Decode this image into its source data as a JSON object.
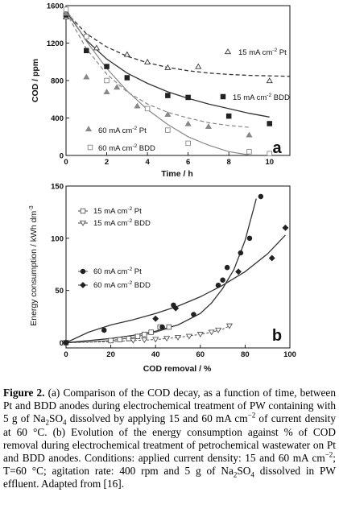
{
  "colors": {
    "pt": "#333333",
    "bdd": "#222222",
    "pt60": "#888888",
    "bdd60": "#999999"
  },
  "chart_data": [
    {
      "type": "scatter",
      "panel_label": "a",
      "xlabel": "Time / h",
      "ylabel": "COD / ppm",
      "xlim": [
        0,
        11
      ],
      "ylim": [
        0,
        1600
      ],
      "xticks": [
        "0",
        "2",
        "4",
        "6",
        "8",
        "10"
      ],
      "yticks": [
        "0",
        "400",
        "800",
        "1200",
        "1600"
      ],
      "series": [
        {
          "name": "15 mA cm-2 Pt",
          "label_main": "15 mA cm",
          "label_sup": "-2",
          "label_tail": " Pt",
          "marker": "triangle-open",
          "line": "dashed-dark",
          "x": [
            0,
            1.5,
            3,
            4,
            5,
            6.5,
            10
          ],
          "y": [
            1480,
            1150,
            1080,
            1000,
            940,
            950,
            800
          ],
          "fit_x": [
            0,
            1,
            2,
            3,
            4,
            5,
            6,
            7,
            8,
            9,
            10,
            11
          ],
          "fit_y": [
            1530,
            1300,
            1160,
            1060,
            990,
            940,
            905,
            880,
            865,
            855,
            850,
            845
          ]
        },
        {
          "name": "15 mA cm-2 BDD",
          "label_main": "15 mA cm",
          "label_sup": "-2",
          "label_tail": " BDD",
          "marker": "square-filled",
          "line": "solid-dark",
          "x": [
            0,
            1,
            2,
            3,
            5,
            6,
            8,
            10
          ],
          "y": [
            1500,
            1120,
            950,
            830,
            640,
            620,
            420,
            340
          ],
          "fit_x": [
            0,
            1,
            2,
            3,
            4,
            5,
            6,
            7,
            8,
            9,
            10
          ],
          "fit_y": [
            1540,
            1230,
            1030,
            880,
            770,
            680,
            610,
            550,
            500,
            450,
            410
          ]
        },
        {
          "name": "60 mA cm-2 Pt",
          "label_main": "60 mA cm",
          "label_sup": "-2",
          "label_tail": " Pt",
          "marker": "triangle-filled",
          "line": "dashed-gray",
          "x": [
            0,
            1,
            2,
            2.5,
            3.5,
            5,
            6,
            7,
            9
          ],
          "y": [
            1520,
            840,
            680,
            730,
            530,
            440,
            340,
            310,
            220
          ],
          "fit_x": [
            0,
            1,
            2,
            3,
            4,
            5,
            6,
            7,
            8,
            9
          ],
          "fit_y": [
            1530,
            1140,
            870,
            680,
            550,
            460,
            400,
            350,
            320,
            300
          ]
        },
        {
          "name": "60 mA cm-2 BDD",
          "label_main": "60 mA cm",
          "label_sup": "-2",
          "label_tail": " BDD",
          "marker": "square-open",
          "line": "solid-gray",
          "x": [
            0,
            1,
            2,
            4,
            5,
            6,
            9,
            10
          ],
          "y": [
            1560,
            1270,
            800,
            500,
            270,
            130,
            40,
            20
          ],
          "fit_x": [
            0,
            1,
            2,
            3,
            4,
            5,
            6,
            7,
            8,
            9
          ],
          "fit_y": [
            1560,
            1220,
            930,
            690,
            490,
            330,
            200,
            110,
            40,
            5
          ]
        }
      ]
    },
    {
      "type": "scatter",
      "panel_label": "b",
      "xlabel": "COD removal / %",
      "ylabel_main": "Energy consumption / kWh dm",
      "ylabel_sup": "-3",
      "xlim": [
        0,
        100
      ],
      "ylim": [
        -5,
        150
      ],
      "xticks": [
        "0",
        "20",
        "40",
        "60",
        "80",
        "100"
      ],
      "yticks": [
        "0",
        "50",
        "100",
        "150"
      ],
      "series": [
        {
          "name": "15 mA cm-2 Pt",
          "label_main": "15 mA cm",
          "label_sup": "-2",
          "label_tail": " Pt",
          "marker": "square-open-line",
          "x": [
            0,
            20,
            24,
            28,
            32,
            35,
            38,
            42,
            46
          ],
          "y": [
            0,
            2,
            3,
            4,
            6,
            8,
            10,
            15,
            15
          ],
          "fit_x": [
            0,
            10,
            20,
            30,
            40,
            46
          ],
          "fit_y": [
            0,
            0.8,
            2,
            5,
            10,
            14
          ]
        },
        {
          "name": "15 mA cm-2 BDD",
          "label_main": "15 mA cm",
          "label_sup": "-2",
          "label_tail": " BDD",
          "marker": "triangle-down-open-line",
          "x": [
            0,
            30,
            35,
            40,
            45,
            50,
            55,
            60,
            65,
            68,
            73
          ],
          "y": [
            0,
            2,
            2.5,
            3,
            4,
            5,
            6,
            8,
            10,
            12,
            16
          ],
          "fit_x": [
            0,
            20,
            30,
            40,
            50,
            60,
            65,
            70,
            73
          ],
          "fit_y": [
            0,
            1,
            2,
            3,
            5,
            8,
            10,
            13,
            16
          ]
        },
        {
          "name": "60 mA cm-2 Pt",
          "label_main": "60 mA cm",
          "label_sup": "-2",
          "label_tail": " Pt",
          "marker": "circle-filled",
          "x": [
            0,
            17,
            43,
            48,
            57,
            68,
            70,
            72,
            78,
            82,
            87
          ],
          "y": [
            0,
            12,
            15,
            36,
            27,
            55,
            60,
            72,
            86,
            100,
            140
          ],
          "fit_x": [
            0,
            10,
            20,
            30,
            40,
            50,
            60,
            65,
            70,
            75,
            80,
            85
          ],
          "fit_y": [
            0,
            2,
            4,
            7,
            11,
            17,
            28,
            38,
            52,
            70,
            98,
            138
          ]
        },
        {
          "name": "60 mA cm-2 BDD",
          "label_main": "60 mA cm",
          "label_sup": "-2",
          "label_tail": " BDD",
          "marker": "diamond-filled",
          "x": [
            0,
            40,
            49,
            77,
            92,
            98
          ],
          "y": [
            0,
            23,
            33,
            68,
            81,
            110
          ],
          "fit_x": [
            0,
            10,
            20,
            30,
            40,
            50,
            60,
            70,
            80,
            90,
            98
          ],
          "fit_y": [
            0,
            10,
            17,
            22,
            28,
            35,
            44,
            55,
            68,
            85,
            103
          ]
        }
      ]
    }
  ],
  "caption": {
    "figure_label": "Figure 2.",
    "p1": " (a) Comparison of the COD decay, as a function of time, between Pt and BDD anodes during electrochemical treatment of PW containing with 5 g of Na",
    "p1_sub1": "2",
    "p1_b": "SO",
    "p1_sub2": "4",
    "p2": " dissolved by applying 15 and 60 mA cm",
    "p2_sup": "−2",
    "p3": " of current density at 60 °C. (b) Evolution of the energy consumption against % of COD removal during electrochemical treatment of petrochemical wastewater on Pt and BDD anodes. Conditions: applied current density: 15 and 60 mA cm",
    "p3_sup": "−2",
    "p4": "; T=60 °C; agitation rate: 400 rpm and 5 g of Na",
    "p4_sub1": "2",
    "p4_b": "SO",
    "p4_sub2": "4",
    "p5": " dissolved in PW effluent. Adapted from [16]."
  }
}
